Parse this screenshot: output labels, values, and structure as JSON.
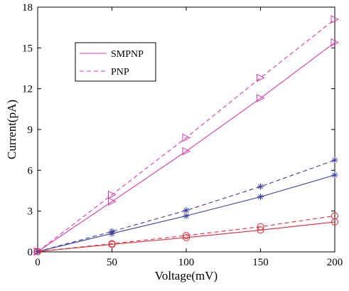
{
  "chart_data": {
    "type": "line",
    "title": "",
    "xlabel": "Voltage(mV)",
    "ylabel": "Current(pA)",
    "xlim": [
      0,
      200
    ],
    "ylim": [
      0,
      18
    ],
    "xticks": [
      0,
      50,
      100,
      150,
      200
    ],
    "xtick_labels": [
      "0",
      "50",
      "100",
      "150",
      "200"
    ],
    "yticks": [
      0,
      3,
      6,
      9,
      12,
      15,
      18
    ],
    "ytick_labels": [
      "0",
      "3",
      "6",
      "9",
      "12",
      "15",
      "18"
    ],
    "grid": false,
    "legend_position": "top-left",
    "legend": [
      {
        "label": "SMPNP",
        "line_style": "solid",
        "color": "#d63dad"
      },
      {
        "label": "PNP",
        "line_style": "dashed",
        "color": "#d63dad"
      }
    ],
    "series": [
      {
        "group": "SMPNP",
        "line_style": "solid",
        "marker": "triangle-right",
        "color": "#d63dad",
        "x": [
          0,
          50,
          100,
          150,
          200
        ],
        "y": [
          0.02,
          3.7,
          7.4,
          11.3,
          15.4
        ]
      },
      {
        "group": "PNP",
        "line_style": "dashed",
        "marker": "triangle-right",
        "color": "#d63dad",
        "x": [
          0,
          50,
          100,
          150,
          200
        ],
        "y": [
          0.02,
          4.2,
          8.4,
          12.8,
          17.1
        ]
      },
      {
        "group": "SMPNP",
        "line_style": "solid",
        "marker": "asterisk",
        "color": "#3b3f9e",
        "x": [
          0,
          50,
          100,
          150,
          200
        ],
        "y": [
          0.02,
          1.35,
          2.65,
          4.05,
          5.65
        ]
      },
      {
        "group": "PNP",
        "line_style": "dashed",
        "marker": "asterisk",
        "color": "#3b3f9e",
        "x": [
          0,
          50,
          100,
          150,
          200
        ],
        "y": [
          0.02,
          1.5,
          3.05,
          4.8,
          6.75
        ]
      },
      {
        "group": "SMPNP",
        "line_style": "solid",
        "marker": "circle",
        "color": "#e02b3c",
        "x": [
          0,
          50,
          100,
          150,
          200
        ],
        "y": [
          0.02,
          0.55,
          1.05,
          1.6,
          2.2
        ]
      },
      {
        "group": "PNP",
        "line_style": "dashed",
        "marker": "circle",
        "color": "#e02b3c",
        "x": [
          0,
          50,
          100,
          150,
          200
        ],
        "y": [
          0.02,
          0.6,
          1.2,
          1.85,
          2.65
        ]
      }
    ]
  }
}
